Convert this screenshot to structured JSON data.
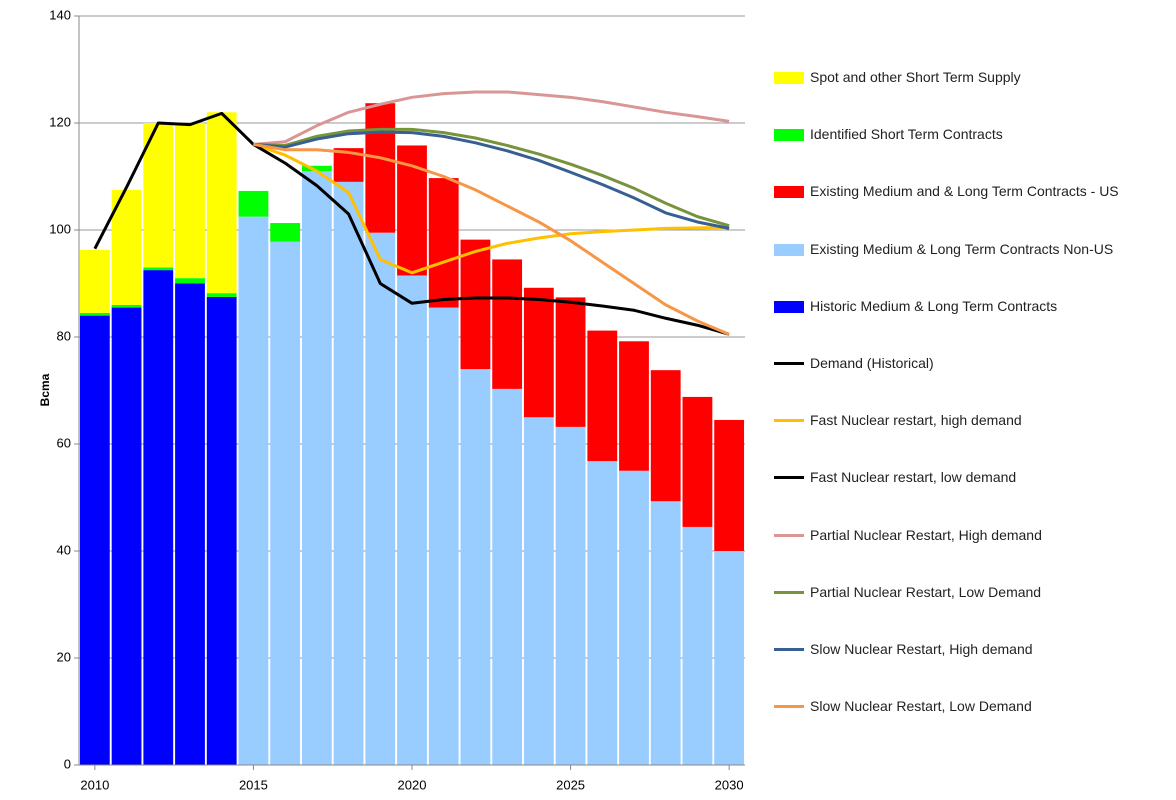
{
  "chart_data": {
    "type": "stacked-bar-line",
    "ylabel": "Bcma",
    "x": [
      2010,
      2011,
      2012,
      2013,
      2014,
      2015,
      2016,
      2017,
      2018,
      2019,
      2020,
      2021,
      2022,
      2023,
      2024,
      2025,
      2026,
      2027,
      2028,
      2029,
      2030
    ],
    "xlim": [
      2009.5,
      2030.5
    ],
    "xticks": [
      2010,
      2015,
      2020,
      2025,
      2030
    ],
    "ylim": [
      0,
      140
    ],
    "yticks": [
      0,
      20,
      40,
      60,
      80,
      100,
      120,
      140
    ],
    "grid": true,
    "bar_series": [
      {
        "name": "Spot and other Short Term Supply",
        "color": "#ffff00",
        "values": [
          11.8,
          21.5,
          27,
          29,
          33.8,
          null,
          null,
          null,
          null,
          null,
          null,
          null,
          null,
          null,
          null,
          null,
          null,
          null,
          null,
          null,
          null
        ]
      },
      {
        "name": "Identified Short Term Contracts",
        "color": "#00ff00",
        "values": [
          0.5,
          0.5,
          0.5,
          1,
          0.7,
          4.8,
          3.5,
          1,
          null,
          null,
          null,
          null,
          null,
          null,
          null,
          null,
          null,
          null,
          null,
          null,
          null
        ]
      },
      {
        "name": "Existing Medium and & Long Term Contracts - US",
        "color": "#ff0000",
        "values": [
          null,
          null,
          null,
          null,
          null,
          null,
          null,
          null,
          6.3,
          24.2,
          24.3,
          24.2,
          24.2,
          24.2,
          24.2,
          24.2,
          24.4,
          24.2,
          24.5,
          24.3,
          24.5
        ]
      },
      {
        "name": "Existing Medium & Long Term Contracts Non-US",
        "color": "#99ccff",
        "values": [
          null,
          null,
          null,
          null,
          null,
          102.5,
          97.8,
          111,
          109,
          99.5,
          91.5,
          85.5,
          74,
          70.3,
          65,
          63.2,
          56.8,
          55,
          49.3,
          44.5,
          40
        ]
      },
      {
        "name": "Historic Medium & Long Term Contracts",
        "color": "#0000ff",
        "values": [
          84,
          85.5,
          92.5,
          90,
          87.5,
          null,
          null,
          null,
          null,
          null,
          null,
          null,
          null,
          null,
          null,
          null,
          null,
          null,
          null,
          null,
          null
        ]
      }
    ],
    "line_series": [
      {
        "name": "Demand (Historical)",
        "color": "#000000",
        "values": [
          96.5,
          108,
          120,
          119.7,
          121.8,
          116,
          null,
          null,
          null,
          null,
          null,
          null,
          null,
          null,
          null,
          null,
          null,
          null,
          null,
          null,
          null
        ]
      },
      {
        "name": "Fast Nuclear restart, high demand",
        "color": "#ffc000",
        "values": [
          null,
          null,
          null,
          null,
          null,
          116,
          114,
          111,
          107,
          94.5,
          92,
          94,
          96,
          97.5,
          98.5,
          99.3,
          99.7,
          100,
          100.3,
          100.4,
          100.5
        ]
      },
      {
        "name": "Fast Nuclear restart, low  demand",
        "color": "#000000",
        "values": [
          null,
          null,
          null,
          null,
          null,
          116,
          112.5,
          108.3,
          103,
          90,
          86.3,
          87,
          87.3,
          87.3,
          87,
          86.5,
          85.8,
          85,
          83.5,
          82.2,
          80.5
        ]
      },
      {
        "name": "Partial Nuclear Restart, High demand",
        "color": "#d99694",
        "values": [
          null,
          null,
          null,
          null,
          null,
          116,
          116.5,
          119.5,
          122,
          123.5,
          124.8,
          125.5,
          125.8,
          125.8,
          125.3,
          124.8,
          124,
          123,
          122,
          121.2,
          120.3
        ]
      },
      {
        "name": "Partial Nuclear Restart, Low Demand",
        "color": "#77933c",
        "values": [
          null,
          null,
          null,
          null,
          null,
          116,
          115.8,
          117.5,
          118.5,
          118.8,
          118.8,
          118.2,
          117.2,
          115.8,
          114.2,
          112.3,
          110.2,
          107.8,
          105,
          102.5,
          100.8
        ]
      },
      {
        "name": "Slow Nuclear Restart, High demand",
        "color": "#376092",
        "values": [
          null,
          null,
          null,
          null,
          null,
          116,
          115.5,
          117,
          118,
          118.3,
          118.2,
          117.5,
          116.3,
          114.8,
          113,
          110.8,
          108.5,
          106,
          103.2,
          101.5,
          100.3
        ]
      },
      {
        "name": "Slow Nuclear Restart, Low Demand",
        "color": "#f79646",
        "values": [
          null,
          null,
          null,
          null,
          null,
          116,
          115,
          115,
          114.5,
          113.5,
          112,
          110,
          107.5,
          104.5,
          101.5,
          98,
          94,
          90,
          86,
          83,
          80.5
        ]
      }
    ]
  }
}
